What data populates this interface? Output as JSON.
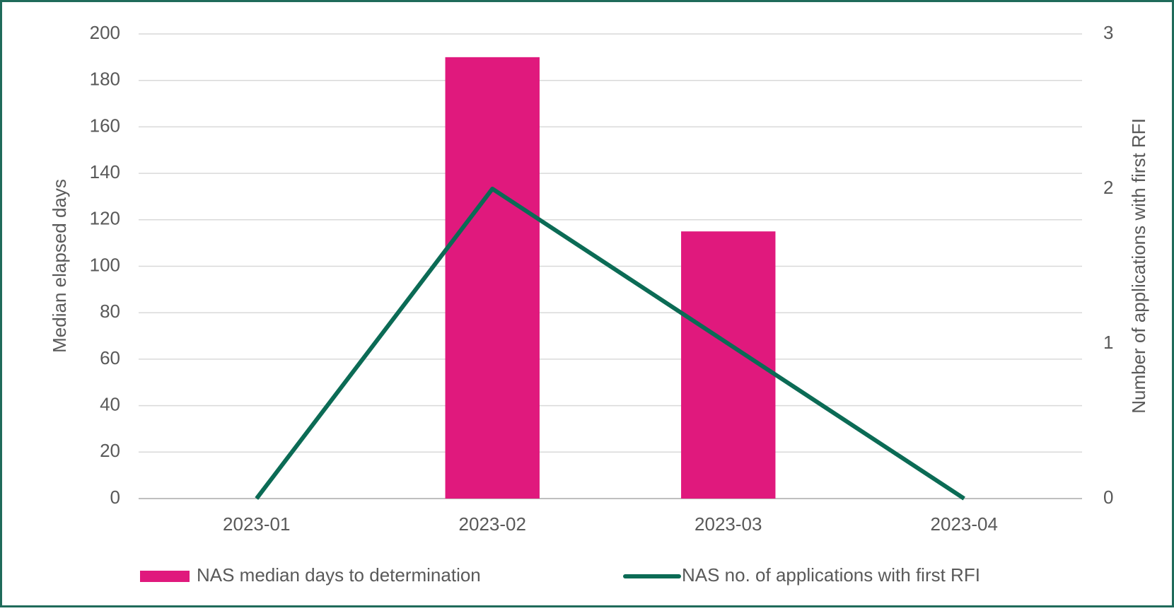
{
  "chart_data": {
    "type": "bar",
    "categories": [
      "2023-01",
      "2023-02",
      "2023-03",
      "2023-04"
    ],
    "series": [
      {
        "name": "NAS median days to determination",
        "type": "bar",
        "color": "#e0197d",
        "values": [
          null,
          190,
          115,
          null
        ]
      },
      {
        "name": "NAS no. of applications with first RFI",
        "type": "line",
        "axis": "y2",
        "color": "#0b6b55",
        "values": [
          0,
          2,
          1,
          0
        ]
      }
    ],
    "ylabel": "Median elapsed days",
    "y2label": "Number of applications with first RFI",
    "ylim": [
      0,
      200
    ],
    "yticks": [
      0,
      20,
      40,
      60,
      80,
      100,
      120,
      140,
      160,
      180,
      200
    ],
    "y2lim": [
      0,
      3
    ],
    "y2ticks": [
      0,
      1,
      2,
      3
    ],
    "grid": true,
    "legend": "bottom"
  }
}
